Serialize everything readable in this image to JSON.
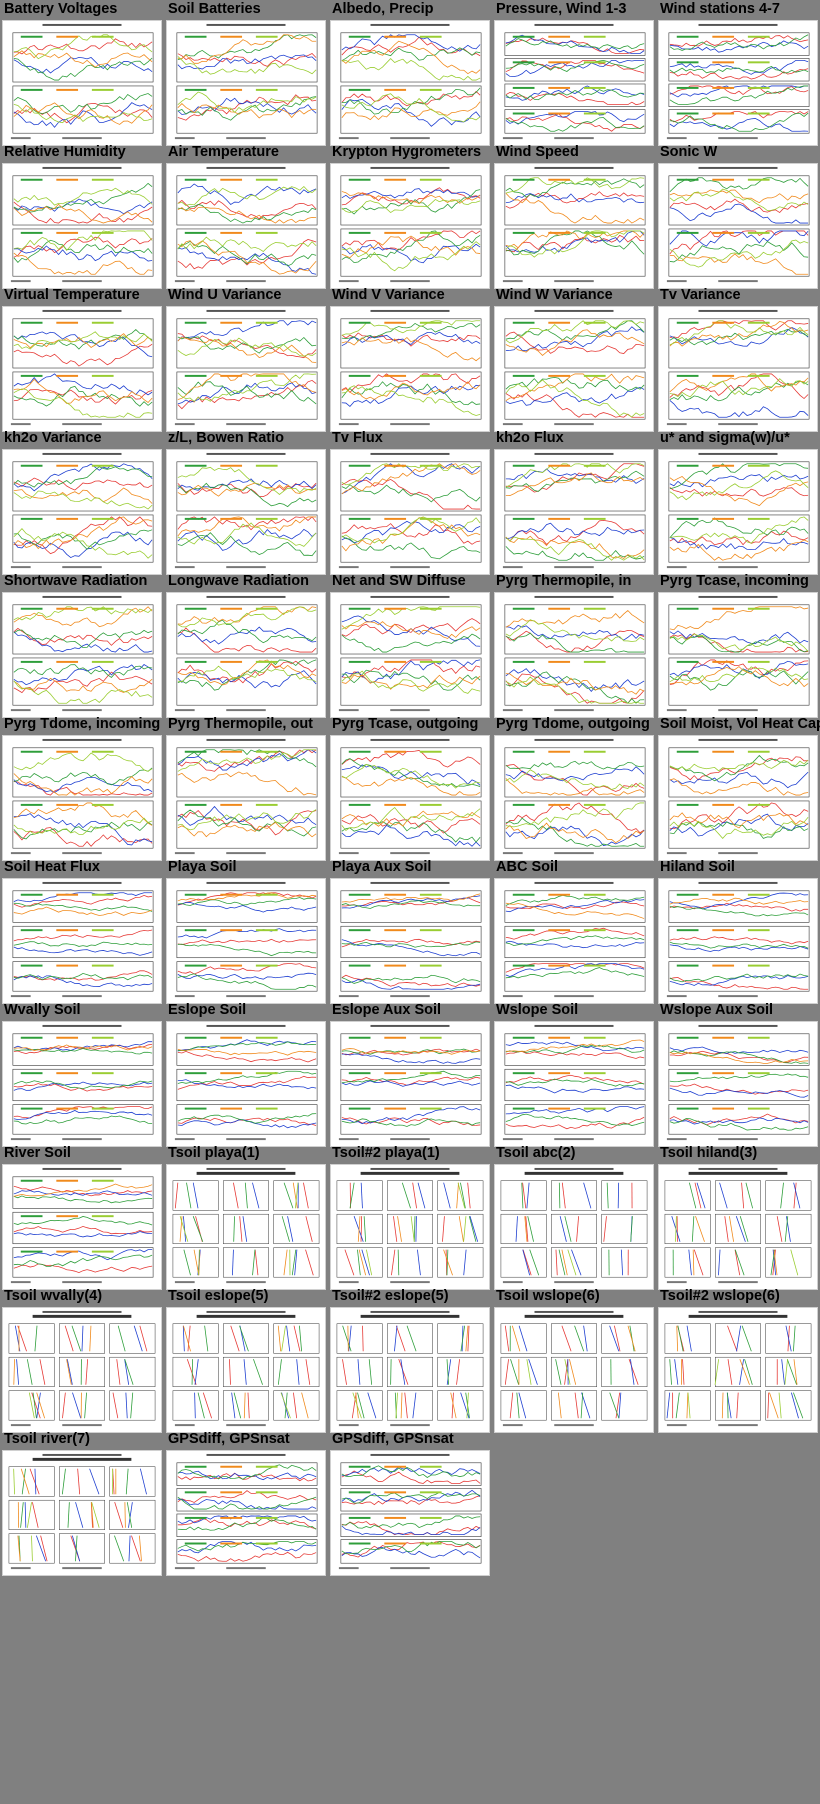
{
  "thumbnails": [
    {
      "title": "Battery Voltages",
      "kind": "two-panel"
    },
    {
      "title": "Soil Batteries",
      "kind": "two-panel"
    },
    {
      "title": "Albedo, Precip",
      "kind": "two-panel"
    },
    {
      "title": "Pressure, Wind 1-3",
      "kind": "four-panel"
    },
    {
      "title": "Wind stations 4-7",
      "kind": "four-panel"
    },
    {
      "title": "Relative Humidity",
      "kind": "two-panel"
    },
    {
      "title": "Air Temperature",
      "kind": "two-panel"
    },
    {
      "title": "Krypton Hygrometers",
      "kind": "two-panel"
    },
    {
      "title": "Wind Speed",
      "kind": "two-panel"
    },
    {
      "title": "Sonic W",
      "kind": "two-panel"
    },
    {
      "title": "Virtual Temperature",
      "kind": "two-panel"
    },
    {
      "title": "Wind U Variance",
      "kind": "two-panel"
    },
    {
      "title": "Wind V Variance",
      "kind": "two-panel"
    },
    {
      "title": "Wind W Variance",
      "kind": "two-panel"
    },
    {
      "title": "Tv Variance",
      "kind": "two-panel"
    },
    {
      "title": "kh2o Variance",
      "kind": "two-panel"
    },
    {
      "title": "z/L, Bowen Ratio",
      "kind": "two-panel"
    },
    {
      "title": "Tv Flux",
      "kind": "two-panel"
    },
    {
      "title": "kh2o Flux",
      "kind": "two-panel"
    },
    {
      "title": "u* and sigma(w)/u*",
      "kind": "two-panel"
    },
    {
      "title": "Shortwave Radiation",
      "kind": "two-panel"
    },
    {
      "title": "Longwave Radiation",
      "kind": "two-panel"
    },
    {
      "title": "Net and SW Diffuse",
      "kind": "two-panel"
    },
    {
      "title": "Pyrg Thermopile, in",
      "kind": "two-panel"
    },
    {
      "title": "Pyrg Tcase, incoming",
      "kind": "two-panel"
    },
    {
      "title": "Pyrg Tdome, incoming",
      "kind": "two-panel"
    },
    {
      "title": "Pyrg Thermopile, out",
      "kind": "two-panel"
    },
    {
      "title": "Pyrg Tcase, outgoing",
      "kind": "two-panel"
    },
    {
      "title": "Pyrg Tdome, outgoing",
      "kind": "two-panel"
    },
    {
      "title": "Soil Moist, Vol Heat Cap",
      "kind": "two-panel"
    },
    {
      "title": "Soil Heat Flux",
      "kind": "three-panel"
    },
    {
      "title": "Playa Soil",
      "kind": "three-panel"
    },
    {
      "title": "Playa Aux Soil",
      "kind": "three-panel"
    },
    {
      "title": "ABC Soil",
      "kind": "three-panel"
    },
    {
      "title": "Hiland Soil",
      "kind": "three-panel"
    },
    {
      "title": "Wvally Soil",
      "kind": "three-panel"
    },
    {
      "title": "Eslope Soil",
      "kind": "three-panel"
    },
    {
      "title": "Eslope Aux Soil",
      "kind": "three-panel"
    },
    {
      "title": "Wslope Soil",
      "kind": "three-panel"
    },
    {
      "title": "Wslope Aux Soil",
      "kind": "three-panel"
    },
    {
      "title": "River Soil",
      "kind": "three-panel"
    },
    {
      "title": "Tsoil playa(1)",
      "kind": "profile-grid"
    },
    {
      "title": "Tsoil#2 playa(1)",
      "kind": "profile-grid"
    },
    {
      "title": "Tsoil abc(2)",
      "kind": "profile-grid"
    },
    {
      "title": "Tsoil hiland(3)",
      "kind": "profile-grid"
    },
    {
      "title": "Tsoil wvally(4)",
      "kind": "profile-grid"
    },
    {
      "title": "Tsoil eslope(5)",
      "kind": "profile-grid"
    },
    {
      "title": "Tsoil#2 eslope(5)",
      "kind": "profile-grid"
    },
    {
      "title": "Tsoil wslope(6)",
      "kind": "profile-grid"
    },
    {
      "title": "Tsoil#2 wslope(6)",
      "kind": "profile-grid"
    },
    {
      "title": "Tsoil river(7)",
      "kind": "profile-grid"
    },
    {
      "title": "GPSdiff, GPSnsat",
      "kind": "four-panel"
    },
    {
      "title": "GPSdiff, GPSnsat",
      "kind": "four-panel"
    }
  ],
  "colors": {
    "background": "#808080",
    "thumb_bg": "#ffffff",
    "series": [
      "#e53935",
      "#1e3fd0",
      "#2e9e3a",
      "#f08a1c",
      "#9acd32",
      "#8e24aa",
      "#222222",
      "#c71585"
    ]
  }
}
